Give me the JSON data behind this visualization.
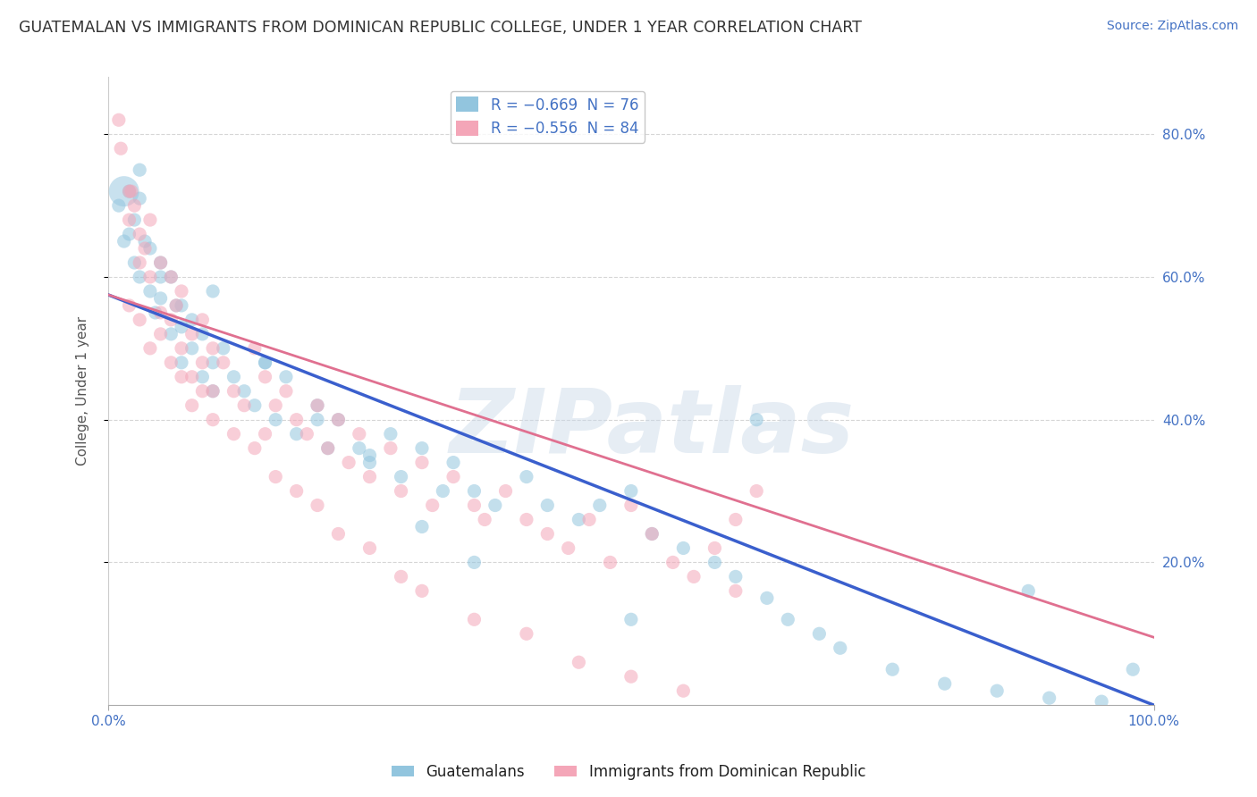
{
  "title": "GUATEMALAN VS IMMIGRANTS FROM DOMINICAN REPUBLIC COLLEGE, UNDER 1 YEAR CORRELATION CHART",
  "source": "Source: ZipAtlas.com",
  "ylabel": "College, Under 1 year",
  "xlim": [
    0.0,
    1.0
  ],
  "ylim": [
    0.0,
    0.88
  ],
  "ytick_labels": [
    "20.0%",
    "40.0%",
    "60.0%",
    "80.0%"
  ],
  "ytick_vals": [
    0.2,
    0.4,
    0.6,
    0.8
  ],
  "xtick_labels": [
    "0.0%",
    "100.0%"
  ],
  "xtick_vals": [
    0.0,
    1.0
  ],
  "blue_color": "#92c5de",
  "pink_color": "#f4a6b8",
  "legend_label_blue": "R = −0.669  N = 76",
  "legend_label_pink": "R = −0.556  N = 84",
  "bottom_legend_blue": "Guatemalans",
  "bottom_legend_pink": "Immigrants from Dominican Republic",
  "watermark": "ZIPatlas",
  "background_color": "#ffffff",
  "grid_color": "#cccccc",
  "title_color": "#333333",
  "line_blue": "#3a5fcd",
  "line_pink": "#e07090",
  "blue_intercept": 0.575,
  "blue_slope": -0.575,
  "pink_intercept": 0.575,
  "pink_slope": -0.48,
  "blue_scatter_x": [
    0.01,
    0.015,
    0.02,
    0.02,
    0.025,
    0.025,
    0.03,
    0.03,
    0.035,
    0.04,
    0.04,
    0.045,
    0.05,
    0.05,
    0.06,
    0.06,
    0.065,
    0.07,
    0.07,
    0.08,
    0.08,
    0.09,
    0.09,
    0.1,
    0.1,
    0.11,
    0.12,
    0.13,
    0.14,
    0.15,
    0.16,
    0.17,
    0.18,
    0.2,
    0.21,
    0.22,
    0.24,
    0.25,
    0.27,
    0.28,
    0.3,
    0.32,
    0.33,
    0.35,
    0.37,
    0.4,
    0.42,
    0.45,
    0.47,
    0.5,
    0.52,
    0.55,
    0.58,
    0.6,
    0.63,
    0.65,
    0.68,
    0.7,
    0.75,
    0.8,
    0.85,
    0.9,
    0.95,
    0.98,
    0.03,
    0.05,
    0.07,
    0.1,
    0.15,
    0.2,
    0.25,
    0.3,
    0.35,
    0.5,
    0.62,
    0.88
  ],
  "blue_scatter_y": [
    0.7,
    0.65,
    0.72,
    0.66,
    0.68,
    0.62,
    0.71,
    0.6,
    0.65,
    0.58,
    0.64,
    0.55,
    0.62,
    0.57,
    0.6,
    0.52,
    0.56,
    0.53,
    0.48,
    0.54,
    0.5,
    0.46,
    0.52,
    0.48,
    0.44,
    0.5,
    0.46,
    0.44,
    0.42,
    0.48,
    0.4,
    0.46,
    0.38,
    0.42,
    0.36,
    0.4,
    0.36,
    0.34,
    0.38,
    0.32,
    0.36,
    0.3,
    0.34,
    0.3,
    0.28,
    0.32,
    0.28,
    0.26,
    0.28,
    0.3,
    0.24,
    0.22,
    0.2,
    0.18,
    0.15,
    0.12,
    0.1,
    0.08,
    0.05,
    0.03,
    0.02,
    0.01,
    0.005,
    0.05,
    0.75,
    0.6,
    0.56,
    0.58,
    0.48,
    0.4,
    0.35,
    0.25,
    0.2,
    0.12,
    0.4,
    0.16
  ],
  "pink_scatter_x": [
    0.01,
    0.02,
    0.02,
    0.025,
    0.03,
    0.03,
    0.035,
    0.04,
    0.04,
    0.05,
    0.05,
    0.06,
    0.06,
    0.065,
    0.07,
    0.07,
    0.08,
    0.08,
    0.09,
    0.09,
    0.1,
    0.1,
    0.11,
    0.12,
    0.13,
    0.14,
    0.15,
    0.16,
    0.17,
    0.18,
    0.19,
    0.2,
    0.21,
    0.22,
    0.23,
    0.24,
    0.25,
    0.27,
    0.28,
    0.3,
    0.31,
    0.33,
    0.35,
    0.36,
    0.38,
    0.4,
    0.42,
    0.44,
    0.46,
    0.48,
    0.5,
    0.52,
    0.54,
    0.56,
    0.58,
    0.6,
    0.62,
    0.02,
    0.03,
    0.04,
    0.05,
    0.06,
    0.07,
    0.08,
    0.09,
    0.1,
    0.12,
    0.14,
    0.16,
    0.18,
    0.2,
    0.22,
    0.25,
    0.28,
    0.3,
    0.35,
    0.4,
    0.45,
    0.5,
    0.55,
    0.6,
    0.012,
    0.022,
    0.15
  ],
  "pink_scatter_y": [
    0.82,
    0.72,
    0.68,
    0.7,
    0.66,
    0.62,
    0.64,
    0.6,
    0.68,
    0.62,
    0.55,
    0.6,
    0.54,
    0.56,
    0.58,
    0.5,
    0.52,
    0.46,
    0.54,
    0.48,
    0.5,
    0.44,
    0.48,
    0.44,
    0.42,
    0.5,
    0.46,
    0.42,
    0.44,
    0.4,
    0.38,
    0.42,
    0.36,
    0.4,
    0.34,
    0.38,
    0.32,
    0.36,
    0.3,
    0.34,
    0.28,
    0.32,
    0.28,
    0.26,
    0.3,
    0.26,
    0.24,
    0.22,
    0.26,
    0.2,
    0.28,
    0.24,
    0.2,
    0.18,
    0.22,
    0.16,
    0.3,
    0.56,
    0.54,
    0.5,
    0.52,
    0.48,
    0.46,
    0.42,
    0.44,
    0.4,
    0.38,
    0.36,
    0.32,
    0.3,
    0.28,
    0.24,
    0.22,
    0.18,
    0.16,
    0.12,
    0.1,
    0.06,
    0.04,
    0.02,
    0.26,
    0.78,
    0.72,
    0.38
  ]
}
